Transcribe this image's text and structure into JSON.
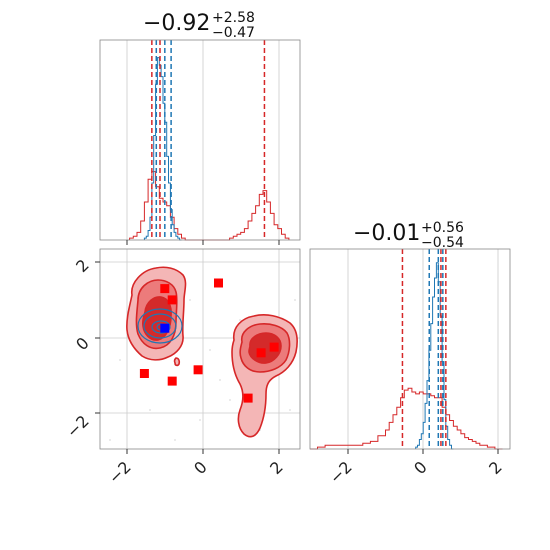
{
  "chart_data": [
    {
      "type": "histogram",
      "panel": "top-left",
      "title": {
        "main": "−0.92",
        "sup": "+2.58",
        "sub": "−0.47"
      },
      "xlim": [
        -2.8,
        2.6
      ],
      "grid": true,
      "red_quantiles": [
        -1.4,
        -1.18,
        1.64
      ],
      "blue_quantiles": [
        -1.28,
        -1.05,
        -0.88
      ],
      "series": [
        {
          "name": "red",
          "color": "#d62728",
          "bin_edges": [
            -2.0,
            -1.9,
            -1.8,
            -1.7,
            -1.6,
            -1.5,
            -1.4,
            -1.3,
            -1.2,
            -1.1,
            -1.0,
            -0.9,
            -0.8,
            -0.7,
            -0.6,
            -0.5,
            -0.4,
            -0.3,
            -0.2,
            -0.1,
            0.0,
            0.1,
            0.2,
            0.3,
            0.4,
            0.5,
            0.6,
            0.7,
            0.8,
            0.9,
            1.0,
            1.1,
            1.2,
            1.3,
            1.4,
            1.5,
            1.6,
            1.7,
            1.8,
            1.9,
            2.0,
            2.1,
            2.2,
            2.3
          ],
          "counts": [
            0.01,
            0.02,
            0.04,
            0.1,
            0.2,
            0.32,
            0.36,
            0.28,
            0.22,
            0.2,
            0.18,
            0.12,
            0.06,
            0.03,
            0.01,
            0.0,
            0.0,
            0.0,
            0.0,
            0.0,
            0.0,
            0.0,
            0.0,
            0.0,
            0.0,
            0.0,
            0.0,
            0.01,
            0.02,
            0.03,
            0.04,
            0.06,
            0.1,
            0.14,
            0.18,
            0.24,
            0.26,
            0.2,
            0.14,
            0.08,
            0.06,
            0.03,
            0.01
          ]
        },
        {
          "name": "blue",
          "color": "#1f77b4",
          "bin_edges": [
            -1.6,
            -1.55,
            -1.5,
            -1.45,
            -1.4,
            -1.35,
            -1.3,
            -1.25,
            -1.2,
            -1.15,
            -1.1,
            -1.05,
            -1.0,
            -0.95,
            -0.9,
            -0.85,
            -0.8,
            -0.75,
            -0.7,
            -0.65,
            -0.6
          ],
          "counts": [
            0.01,
            0.02,
            0.05,
            0.12,
            0.3,
            0.55,
            0.82,
            0.96,
            0.92,
            0.86,
            0.72,
            0.62,
            0.44,
            0.3,
            0.16,
            0.08,
            0.04,
            0.02,
            0.01,
            0.0
          ]
        }
      ]
    },
    {
      "type": "contour-scatter",
      "panel": "bottom-left",
      "xlim": [
        -2.8,
        2.6
      ],
      "ylim": [
        -2.9,
        2.4
      ],
      "xticks": [
        -2,
        0,
        2
      ],
      "xticklabels": [
        "−2",
        "0",
        "2"
      ],
      "yticks": [
        -2,
        0,
        2
      ],
      "yticklabels": [
        "−2",
        "0",
        "2"
      ],
      "grid": true,
      "red_markers": [
        [
          -1.05,
          1.35
        ],
        [
          -0.85,
          1.05
        ],
        [
          0.4,
          1.5
        ],
        [
          -1.6,
          -0.9
        ],
        [
          -0.85,
          -1.1
        ],
        [
          -0.15,
          -0.8
        ],
        [
          1.2,
          -1.55
        ],
        [
          1.55,
          -0.35
        ],
        [
          1.9,
          -0.2
        ]
      ],
      "blue_marker": [
        -1.05,
        0.3
      ],
      "red_color": "#ff0000",
      "blue_color": "#0000ff"
    },
    {
      "type": "histogram",
      "panel": "bottom-right",
      "title": {
        "main": "−0.01",
        "sup": "+0.56",
        "sub": "−0.54"
      },
      "xlim": [
        -3.0,
        2.3
      ],
      "xticks": [
        -2,
        0,
        2
      ],
      "xticklabels": [
        "−2",
        "0",
        "2"
      ],
      "grid": true,
      "red_quantiles": [
        -0.55,
        0.47,
        0.6
      ],
      "blue_quantiles": [
        0.16,
        0.4,
        0.52
      ],
      "series": [
        {
          "name": "red",
          "color": "#d62728",
          "bin_edges": [
            -3.0,
            -2.8,
            -2.6,
            -2.4,
            -2.2,
            -2.0,
            -1.8,
            -1.6,
            -1.4,
            -1.2,
            -1.0,
            -0.9,
            -0.8,
            -0.7,
            -0.6,
            -0.5,
            -0.4,
            -0.3,
            -0.2,
            -0.1,
            0.0,
            0.1,
            0.2,
            0.3,
            0.4,
            0.5,
            0.6,
            0.7,
            0.8,
            0.9,
            1.0,
            1.1,
            1.2,
            1.3,
            1.4,
            1.5,
            1.7,
            1.9,
            2.1
          ],
          "counts": [
            0.0,
            0.01,
            0.02,
            0.02,
            0.02,
            0.02,
            0.02,
            0.03,
            0.04,
            0.07,
            0.1,
            0.14,
            0.18,
            0.22,
            0.27,
            0.31,
            0.32,
            0.3,
            0.29,
            0.3,
            0.29,
            0.29,
            0.28,
            0.27,
            0.27,
            0.22,
            0.18,
            0.15,
            0.12,
            0.1,
            0.08,
            0.06,
            0.05,
            0.04,
            0.03,
            0.02,
            0.01,
            0.0
          ]
        },
        {
          "name": "blue",
          "color": "#1f77b4",
          "bin_edges": [
            -0.2,
            -0.15,
            -0.1,
            -0.05,
            0.0,
            0.05,
            0.1,
            0.15,
            0.2,
            0.25,
            0.3,
            0.35,
            0.4,
            0.45,
            0.5,
            0.55,
            0.6,
            0.65,
            0.7,
            0.75,
            0.8
          ],
          "counts": [
            0.01,
            0.02,
            0.05,
            0.08,
            0.14,
            0.24,
            0.36,
            0.52,
            0.66,
            0.8,
            0.9,
            0.98,
            0.88,
            0.7,
            0.46,
            0.26,
            0.12,
            0.05,
            0.02,
            0.0
          ]
        }
      ]
    }
  ]
}
